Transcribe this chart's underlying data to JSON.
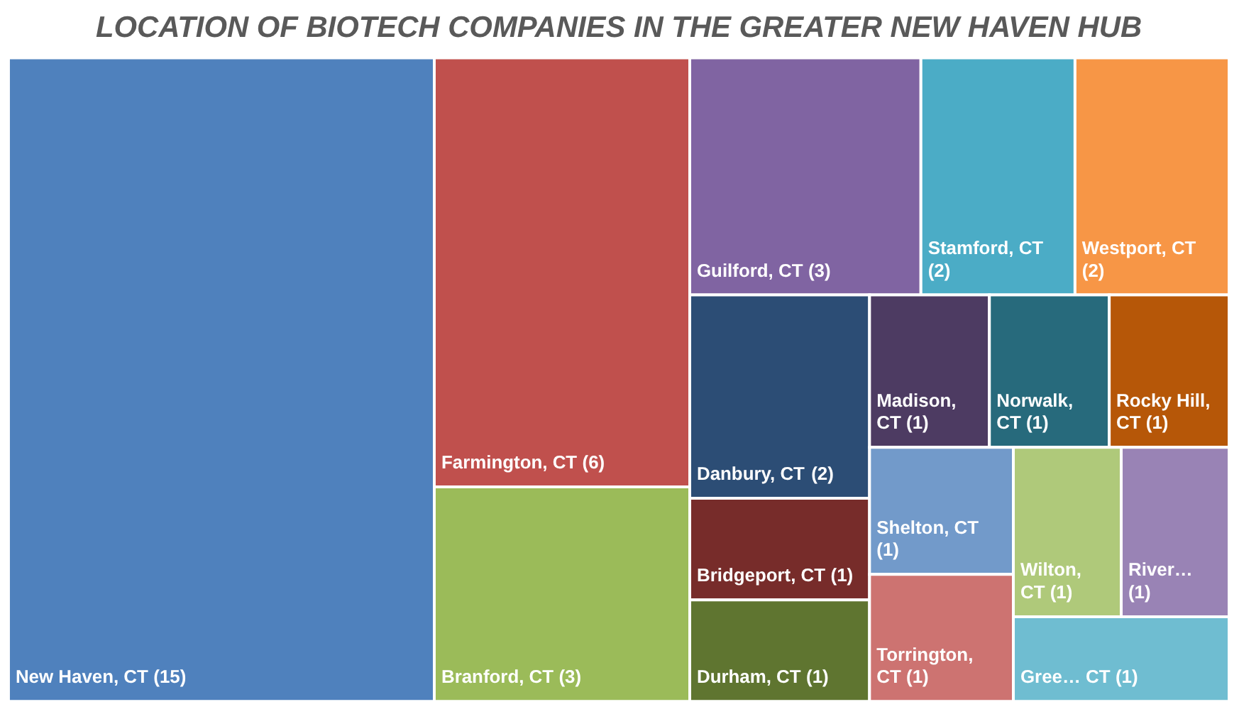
{
  "chart_data": {
    "type": "other",
    "title": "LOCATION OF BIOTECH COMPANIES IN THE GREATER NEW HAVEN HUB",
    "categories": [
      "New Haven, CT",
      "Farmington, CT",
      "Branford, CT",
      "Guilford, CT",
      "Stamford, CT",
      "Westport, CT",
      "Danbury, CT",
      "Bridgeport, CT",
      "Durham, CT",
      "Madison, CT",
      "Norwalk, CT",
      "Rocky Hill, CT",
      "Shelton, CT",
      "Torrington, CT",
      "Wilton, CT",
      "River…",
      "Gree… CT"
    ],
    "values": [
      15,
      6,
      3,
      3,
      2,
      2,
      2,
      1,
      1,
      1,
      1,
      1,
      1,
      1,
      1,
      1,
      1
    ],
    "value_labels": [
      "(15)",
      "(6)",
      "(3)",
      "(3)",
      "(2)",
      "(2)",
      "(2)",
      "(1)",
      "(1)",
      "(1)",
      "(1)",
      "(1)",
      "(1)",
      "(1)",
      "(1)",
      "(1)",
      "(1)"
    ],
    "colors": [
      "#4f81bd",
      "#c0504d",
      "#9bbb59",
      "#8064a2",
      "#4bacc6",
      "#f79646",
      "#2c4d75",
      "#772c2a",
      "#5f7530",
      "#4d3b62",
      "#276a7c",
      "#b65708",
      "#729aca",
      "#cd7371",
      "#afc97a",
      "#9983b5",
      "#6fbdd1"
    ]
  }
}
